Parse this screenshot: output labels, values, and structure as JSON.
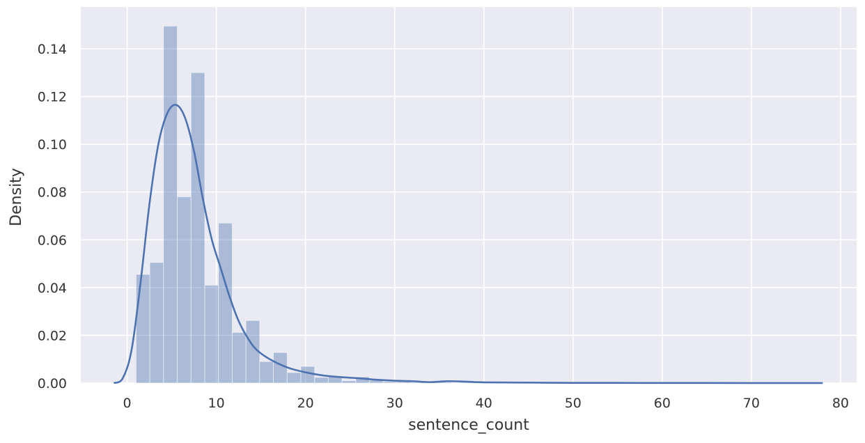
{
  "chart_data": {
    "type": "bar",
    "xlabel": "sentence_count",
    "ylabel": "Density",
    "xlim": [
      -5.2,
      81.8
    ],
    "ylim": [
      0,
      0.1575
    ],
    "xticks": [
      "0",
      "10",
      "20",
      "30",
      "40",
      "50",
      "60",
      "70",
      "80"
    ],
    "yticks": [
      "0.00",
      "0.02",
      "0.04",
      "0.06",
      "0.08",
      "0.10",
      "0.12",
      "0.14"
    ],
    "grid": true,
    "colors": {
      "background": "#EAEAF2",
      "grid": "#FFFFFF",
      "bars": "#4C72B0",
      "kde": "#4C72B0"
    },
    "bin_width": 1.54,
    "bin_start": 1.0,
    "histogram_density": [
      0.0455,
      0.0505,
      0.1495,
      0.078,
      0.13,
      0.041,
      0.067,
      0.0212,
      0.0262,
      0.009,
      0.0128,
      0.0044,
      0.007,
      0.0024,
      0.003,
      0.001,
      0.0026,
      0.0012,
      0.0006,
      0.0006,
      0.0004,
      0.0002,
      0.0004,
      0.0002,
      0.0008,
      0.0002,
      0.0002,
      0.0002,
      0.0002,
      0.0002,
      0.0001,
      0.0001,
      0.0001,
      0.0001,
      0.0001,
      0.0001,
      0.0001,
      0.0001,
      0.0001,
      0.0001,
      0.0001,
      0.0001,
      0.0001,
      0.0001,
      0.0001,
      0.0001,
      0.0001,
      0.0001,
      0.0001,
      0.0001
    ],
    "kde_line": {
      "x": [
        -1.5,
        -0.5,
        0.5,
        1.5,
        2.5,
        3.5,
        4.5,
        5.5,
        6.5,
        7.5,
        8.5,
        9.5,
        10.5,
        11.5,
        12.5,
        13.5,
        14.5,
        16,
        18,
        20,
        22,
        24,
        26,
        28,
        30,
        32,
        34,
        36,
        38,
        40,
        45,
        50,
        55,
        60,
        65,
        70,
        75,
        78
      ],
      "y": [
        0.0,
        0.002,
        0.014,
        0.042,
        0.075,
        0.1,
        0.113,
        0.1165,
        0.111,
        0.097,
        0.077,
        0.06,
        0.048,
        0.036,
        0.026,
        0.019,
        0.014,
        0.01,
        0.0065,
        0.0045,
        0.0032,
        0.0025,
        0.002,
        0.0014,
        0.001,
        0.0008,
        0.0004,
        0.0008,
        0.0006,
        0.0003,
        0.0002,
        0.0001,
        8e-05,
        5e-05,
        4e-05,
        3e-05,
        2e-05,
        1e-05
      ]
    }
  }
}
